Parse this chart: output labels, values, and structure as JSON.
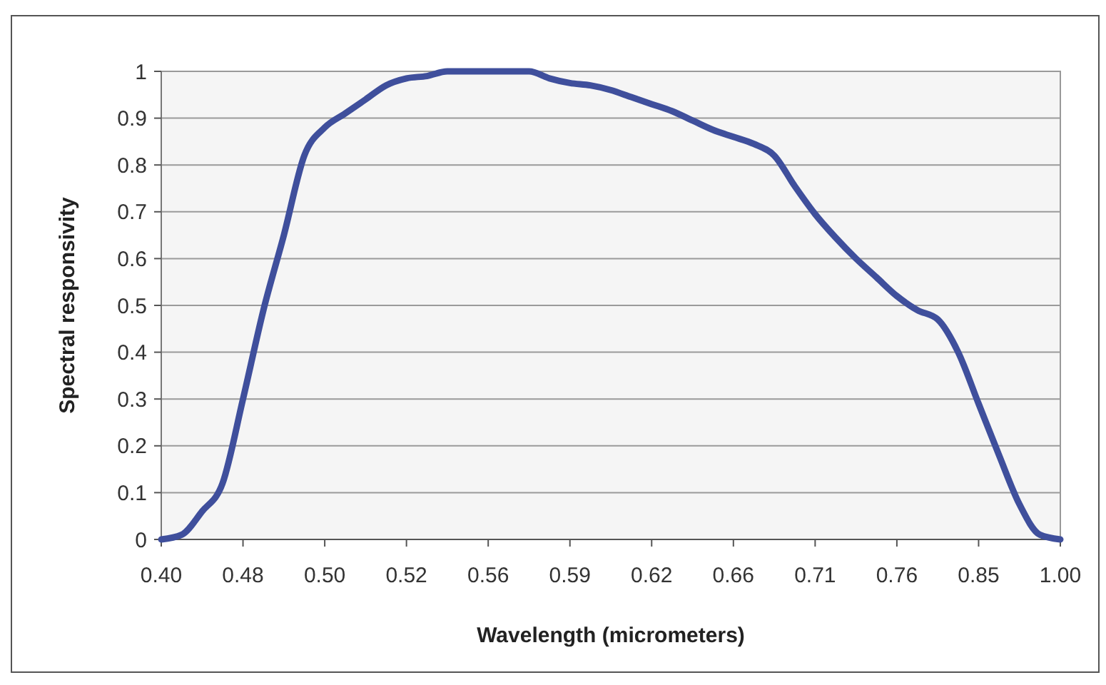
{
  "chart_data": {
    "type": "line",
    "xlabel": "Wavelength (micrometers)",
    "ylabel": "Spectral responsivity",
    "categories": [
      "0.40",
      null,
      null,
      null,
      "0.48",
      null,
      null,
      null,
      "0.50",
      null,
      null,
      null,
      "0.52",
      null,
      null,
      null,
      "0.56",
      null,
      null,
      null,
      "0.59",
      null,
      null,
      null,
      "0.62",
      null,
      null,
      null,
      "0.66",
      null,
      null,
      null,
      "0.71",
      null,
      null,
      null,
      "0.76",
      null,
      null,
      null,
      "0.85",
      null,
      null,
      null,
      "1.00"
    ],
    "series": [
      {
        "color": "#3f4f9c",
        "values": [
          0,
          0.01,
          0.06,
          0.12,
          0.3,
          0.49,
          0.65,
          0.82,
          0.88,
          0.91,
          0.94,
          0.97,
          0.985,
          0.99,
          1,
          1,
          1,
          1,
          1,
          0.985,
          0.975,
          0.97,
          0.96,
          0.945,
          0.93,
          0.915,
          0.895,
          0.875,
          0.86,
          0.845,
          0.82,
          0.755,
          0.695,
          0.645,
          0.6,
          0.56,
          0.52,
          0.49,
          0.47,
          0.4,
          0.29,
          0.18,
          0.075,
          0.01,
          0
        ]
      }
    ],
    "ylim": [
      0,
      1
    ],
    "yticks": [
      0,
      0.1,
      0.2,
      0.3,
      0.4,
      0.5,
      0.6,
      0.7,
      0.8,
      0.9,
      1
    ],
    "grid": "y",
    "marker": "none",
    "line_style": "solid"
  }
}
